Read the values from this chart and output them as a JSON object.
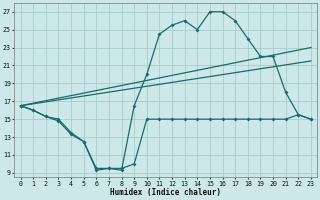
{
  "xlabel": "Humidex (Indice chaleur)",
  "bg_color": "#cce8e8",
  "grid_color": "#aacccc",
  "line_color": "#1a6b6b",
  "xlim": [
    -0.5,
    23.5
  ],
  "ylim": [
    8.5,
    28.0
  ],
  "yticks": [
    9,
    11,
    13,
    15,
    17,
    19,
    21,
    23,
    25,
    27
  ],
  "xticks": [
    0,
    1,
    2,
    3,
    4,
    5,
    6,
    7,
    8,
    9,
    10,
    11,
    12,
    13,
    14,
    15,
    16,
    17,
    18,
    19,
    20,
    21,
    22,
    23
  ],
  "series_main_x": [
    0,
    1,
    2,
    3,
    4,
    5,
    6,
    7,
    8,
    9,
    10,
    11,
    12,
    13,
    14,
    15,
    16,
    17,
    18,
    19,
    20,
    21,
    22,
    23
  ],
  "series_main_y": [
    16.5,
    16.0,
    15.3,
    14.8,
    13.3,
    12.5,
    9.3,
    9.5,
    9.3,
    16.5,
    20.0,
    24.5,
    25.5,
    26.0,
    25.0,
    27.0,
    27.0,
    26.0,
    24.0,
    22.0,
    22.0,
    18.0,
    15.5,
    15.0
  ],
  "series_low_x": [
    0,
    1,
    2,
    3,
    4,
    5,
    6,
    7,
    8,
    9,
    10,
    11,
    12,
    13,
    14,
    15,
    16,
    17,
    18,
    19,
    20,
    21,
    22,
    23
  ],
  "series_low_y": [
    16.5,
    16.0,
    15.3,
    15.0,
    13.5,
    12.5,
    9.5,
    9.5,
    9.5,
    10.0,
    15.0,
    15.0,
    15.0,
    15.0,
    15.0,
    15.0,
    15.0,
    15.0,
    15.0,
    15.0,
    15.0,
    15.0,
    15.5,
    15.0
  ],
  "line1_x": [
    0,
    23
  ],
  "line1_y": [
    16.5,
    21.5
  ],
  "line2_x": [
    0,
    23
  ],
  "line2_y": [
    16.5,
    23.0
  ]
}
